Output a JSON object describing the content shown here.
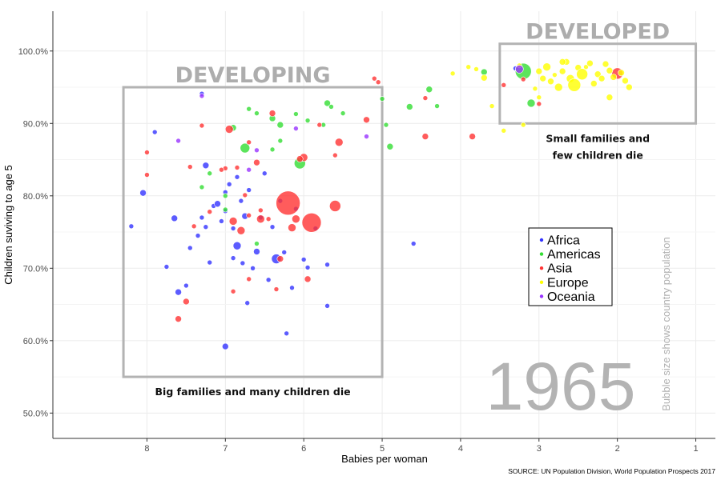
{
  "chart_data": {
    "type": "scatter",
    "title": "",
    "xlabel": "Babies per woman",
    "ylabel": "Children suviving to age 5",
    "xlim": [
      0.75,
      9.2
    ],
    "x_reversed": true,
    "ylim": [
      0.465,
      1.055
    ],
    "x_ticks": [
      8,
      7,
      6,
      5,
      4,
      3,
      2,
      1
    ],
    "y_ticks": [
      0.5,
      0.6,
      0.7,
      0.8,
      0.9,
      1.0
    ],
    "y_tick_labels": [
      "50.0%",
      "60.0%",
      "70.0%",
      "80.0%",
      "90.0%",
      "100.0%"
    ],
    "grid": true,
    "legend_position": "right",
    "year_label": "1965",
    "size_note": "Bubble size shows country population",
    "source": "SOURCE: UN Population Division, World Population Prospects 2017",
    "regions": [
      {
        "label": "DEVELOPING",
        "caption_lines": [
          "Big families and many children die"
        ],
        "x_range": [
          8.3,
          5.0
        ],
        "y_range": [
          0.55,
          0.95
        ]
      },
      {
        "label": "DEVELOPED",
        "caption_lines": [
          "Small families and",
          "few children die"
        ],
        "x_range": [
          3.5,
          1.0
        ],
        "y_range": [
          0.9,
          1.01
        ]
      }
    ],
    "series": [
      {
        "name": "Africa",
        "color": "#3333ff",
        "points": [
          [
            8.2,
            0.758,
            3
          ],
          [
            8.05,
            0.804,
            4
          ],
          [
            7.9,
            0.888,
            3
          ],
          [
            7.75,
            0.702,
            3
          ],
          [
            7.65,
            0.769,
            4
          ],
          [
            7.6,
            0.667,
            4
          ],
          [
            7.5,
            0.676,
            3
          ],
          [
            7.45,
            0.728,
            3
          ],
          [
            7.35,
            0.745,
            3
          ],
          [
            7.3,
            0.77,
            3
          ],
          [
            7.3,
            0.941,
            3
          ],
          [
            7.25,
            0.842,
            4
          ],
          [
            7.25,
            0.757,
            3
          ],
          [
            7.2,
            0.708,
            3
          ],
          [
            7.15,
            0.786,
            3
          ],
          [
            7.1,
            0.789,
            4
          ],
          [
            7.05,
            0.765,
            3
          ],
          [
            7.0,
            0.592,
            4
          ],
          [
            7.0,
            0.805,
            3
          ],
          [
            6.95,
            0.816,
            3
          ],
          [
            6.9,
            0.755,
            3
          ],
          [
            6.85,
            0.731,
            5
          ],
          [
            6.8,
            0.793,
            3
          ],
          [
            6.78,
            0.707,
            3
          ],
          [
            6.75,
            0.772,
            4
          ],
          [
            6.72,
            0.652,
            3
          ],
          [
            6.7,
            0.808,
            3
          ],
          [
            6.65,
            0.7,
            3
          ],
          [
            6.6,
            0.723,
            4
          ],
          [
            6.55,
            0.77,
            3
          ],
          [
            6.5,
            0.831,
            3
          ],
          [
            6.45,
            0.684,
            3
          ],
          [
            6.4,
            0.757,
            3
          ],
          [
            6.35,
            0.713,
            6
          ],
          [
            6.3,
            0.793,
            3
          ],
          [
            6.25,
            0.722,
            3
          ],
          [
            6.22,
            0.61,
            3
          ],
          [
            6.15,
            0.673,
            3
          ],
          [
            6.1,
            0.782,
            3
          ],
          [
            6.0,
            0.712,
            3
          ],
          [
            5.95,
            0.701,
            3
          ],
          [
            5.85,
            0.755,
            3
          ],
          [
            5.7,
            0.648,
            3
          ],
          [
            5.7,
            0.705,
            3
          ],
          [
            6.85,
            0.826,
            3
          ],
          [
            7.0,
            0.779,
            3
          ],
          [
            6.9,
            0.714,
            3
          ],
          [
            4.6,
            0.734,
            3
          ],
          [
            3.3,
            0.976,
            3
          ]
        ]
      },
      {
        "name": "Americas",
        "color": "#33dd33",
        "points": [
          [
            3.2,
            0.972,
            10
          ],
          [
            3.1,
            0.928,
            5
          ],
          [
            3.7,
            0.971,
            4
          ],
          [
            4.4,
            0.947,
            4
          ],
          [
            4.3,
            0.924,
            3
          ],
          [
            4.65,
            0.923,
            4
          ],
          [
            5.0,
            0.934,
            3
          ],
          [
            4.95,
            0.898,
            3
          ],
          [
            4.9,
            0.868,
            4
          ],
          [
            5.5,
            0.914,
            3
          ],
          [
            5.7,
            0.928,
            4
          ],
          [
            5.65,
            0.923,
            3
          ],
          [
            5.75,
            0.898,
            3
          ],
          [
            6.05,
            0.845,
            7
          ],
          [
            6.3,
            0.898,
            4
          ],
          [
            6.4,
            0.907,
            4
          ],
          [
            6.7,
            0.92,
            3
          ],
          [
            6.75,
            0.866,
            6
          ],
          [
            6.9,
            0.894,
            4
          ],
          [
            7.0,
            0.8,
            3
          ],
          [
            7.0,
            0.781,
            3
          ],
          [
            7.2,
            0.831,
            3
          ],
          [
            7.3,
            0.812,
            3
          ],
          [
            6.6,
            0.734,
            3
          ],
          [
            6.3,
            0.876,
            3
          ],
          [
            6.1,
            0.913,
            3
          ],
          [
            6.6,
            0.914,
            3
          ],
          [
            5.95,
            0.904,
            3
          ],
          [
            6.4,
            0.864,
            3
          ]
        ]
      },
      {
        "name": "Asia",
        "color": "#ff3333",
        "points": [
          [
            6.2,
            0.79,
            15
          ],
          [
            5.9,
            0.763,
            12
          ],
          [
            5.6,
            0.786,
            7
          ],
          [
            5.55,
            0.874,
            5
          ],
          [
            6.0,
            0.853,
            5
          ],
          [
            6.1,
            0.768,
            5
          ],
          [
            6.15,
            0.756,
            5
          ],
          [
            6.3,
            0.713,
            4
          ],
          [
            6.4,
            0.914,
            4
          ],
          [
            6.55,
            0.768,
            5
          ],
          [
            6.6,
            0.846,
            4
          ],
          [
            6.7,
            0.773,
            3
          ],
          [
            6.8,
            0.752,
            5
          ],
          [
            6.85,
            0.839,
            3
          ],
          [
            6.9,
            0.765,
            5
          ],
          [
            6.75,
            0.801,
            3
          ],
          [
            6.95,
            0.892,
            5
          ],
          [
            7.0,
            0.838,
            3
          ],
          [
            7.3,
            0.897,
            3
          ],
          [
            7.4,
            0.758,
            3
          ],
          [
            7.5,
            0.654,
            4
          ],
          [
            7.6,
            0.63,
            4
          ],
          [
            7.45,
            0.84,
            3
          ],
          [
            8.0,
            0.86,
            3
          ],
          [
            8.0,
            0.829,
            3
          ],
          [
            6.7,
            0.874,
            3
          ],
          [
            6.05,
            0.851,
            4
          ],
          [
            5.95,
            0.685,
            4
          ],
          [
            5.8,
            0.898,
            3
          ],
          [
            5.6,
            0.856,
            3
          ],
          [
            5.2,
            0.905,
            4
          ],
          [
            5.1,
            0.962,
            3
          ],
          [
            5.05,
            0.957,
            3
          ],
          [
            4.45,
            0.935,
            3
          ],
          [
            4.45,
            0.882,
            4
          ],
          [
            3.85,
            0.882,
            4
          ],
          [
            3.45,
            0.953,
            3
          ],
          [
            3.2,
            0.961,
            3
          ],
          [
            3.0,
            0.927,
            3
          ],
          [
            2.0,
            0.969,
            7
          ],
          [
            7.05,
            0.836,
            3
          ],
          [
            6.55,
            0.78,
            3
          ],
          [
            6.45,
            0.768,
            3
          ],
          [
            7.2,
            0.778,
            3
          ],
          [
            6.7,
            0.685,
            3
          ],
          [
            6.35,
            0.671,
            3
          ],
          [
            6.9,
            0.668,
            3
          ]
        ]
      },
      {
        "name": "Europe",
        "color": "#ffff00",
        "points": [
          [
            3.9,
            0.978,
            3
          ],
          [
            3.8,
            0.975,
            3
          ],
          [
            3.7,
            0.963,
            4
          ],
          [
            4.1,
            0.969,
            3
          ],
          [
            3.6,
            0.924,
            3
          ],
          [
            3.45,
            0.89,
            3
          ],
          [
            3.25,
            0.98,
            3
          ],
          [
            3.05,
            0.948,
            3
          ],
          [
            3.0,
            0.972,
            4
          ],
          [
            2.95,
            0.962,
            4
          ],
          [
            2.9,
            0.978,
            5
          ],
          [
            2.85,
            0.958,
            4
          ],
          [
            2.8,
            0.967,
            3
          ],
          [
            2.75,
            0.95,
            5
          ],
          [
            2.7,
            0.972,
            4
          ],
          [
            2.65,
            0.985,
            4
          ],
          [
            2.6,
            0.962,
            5
          ],
          [
            2.55,
            0.953,
            8
          ],
          [
            2.5,
            0.977,
            4
          ],
          [
            2.45,
            0.968,
            7
          ],
          [
            2.4,
            0.978,
            3
          ],
          [
            2.35,
            0.983,
            4
          ],
          [
            2.3,
            0.955,
            4
          ],
          [
            2.25,
            0.968,
            4
          ],
          [
            2.2,
            0.962,
            4
          ],
          [
            2.15,
            0.982,
            4
          ],
          [
            2.1,
            0.973,
            4
          ],
          [
            2.05,
            0.964,
            4
          ],
          [
            1.95,
            0.97,
            4
          ],
          [
            1.9,
            0.959,
            4
          ],
          [
            1.85,
            0.95,
            4
          ],
          [
            2.1,
            0.936,
            4
          ],
          [
            3.0,
            0.936,
            3
          ],
          [
            3.2,
            0.898,
            3
          ],
          [
            2.7,
            0.985,
            4
          ]
        ]
      },
      {
        "name": "Oceania",
        "color": "#9933ff",
        "points": [
          [
            3.25,
            0.975,
            5
          ],
          [
            5.2,
            0.882,
            3
          ],
          [
            7.6,
            0.876,
            3
          ],
          [
            7.3,
            0.938,
            3
          ],
          [
            6.6,
            0.863,
            3
          ],
          [
            6.7,
            0.836,
            3
          ],
          [
            6.1,
            0.893,
            3
          ]
        ]
      }
    ]
  }
}
